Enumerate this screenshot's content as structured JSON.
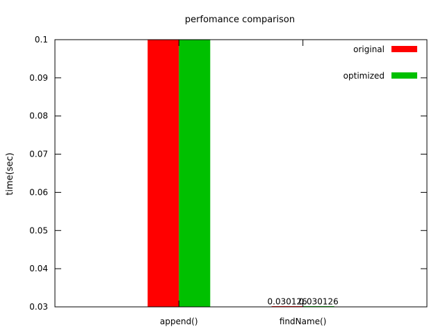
{
  "chart_data": {
    "type": "bar",
    "title": "perfomance comparison",
    "xlabel": "",
    "ylabel": "time(sec)",
    "categories": [
      "append()",
      "findName()"
    ],
    "series": [
      {
        "name": "original",
        "values": [
          0.1,
          0.030126
        ],
        "color": "#ff0000"
      },
      {
        "name": "optimized",
        "values": [
          0.1,
          0.030126
        ],
        "color": "#00c000"
      }
    ],
    "ylim": [
      0.03,
      0.1
    ],
    "yticks": [
      "0.03",
      "0.04",
      "0.05",
      "0.06",
      "0.07",
      "0.08",
      "0.09",
      "0.1"
    ],
    "data_labels": [
      {
        "series": 0,
        "category": 1,
        "text": "0.030126"
      },
      {
        "series": 1,
        "category": 1,
        "text": "0.030126"
      }
    ],
    "grid": false,
    "legend_position": "top-right"
  }
}
